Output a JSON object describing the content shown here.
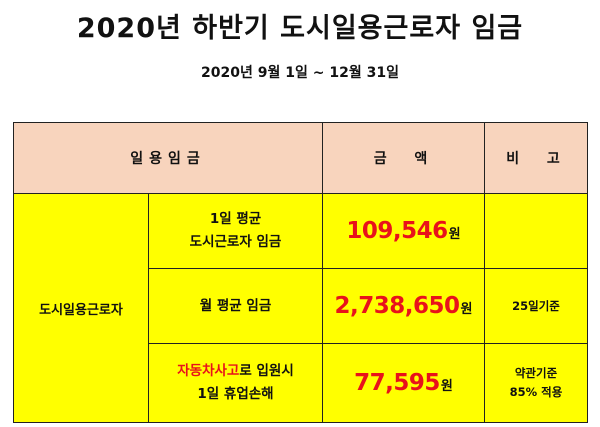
{
  "title": "2020년 하반기 도시일용근로자 임금",
  "period": "2020년 9월 1일 ~ 12월 31일",
  "table": {
    "headers": {
      "wage": "일용임금",
      "amount": "금  액",
      "note": "비  고"
    },
    "category": "도시일용근로자",
    "rows": [
      {
        "item_line1": "1일 평균",
        "item_line2": "도시근로자 임금",
        "amount": "109,546",
        "unit": "원",
        "note_line1": "",
        "note_line2": ""
      },
      {
        "item_line1": "월 평균 임금",
        "amount": "2,738,650",
        "unit": "원",
        "note_line1": "25일기준"
      },
      {
        "item_line1_red": "자동차사고",
        "item_line1_rest": "로 입원시",
        "item_line2": "1일 휴업손해",
        "amount": "77,595",
        "unit": "원",
        "note_line1": "약관기준",
        "note_line2": "85% 적용"
      }
    ]
  },
  "colors": {
    "header_bg": "#f8d4bd",
    "body_bg": "#ffff00",
    "accent_red": "#e8121b"
  }
}
